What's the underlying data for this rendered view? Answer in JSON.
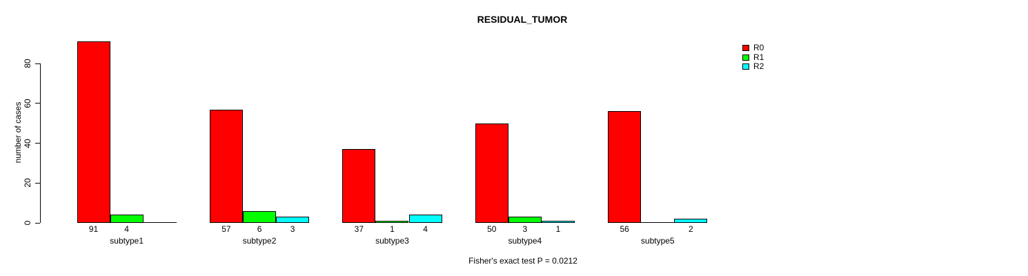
{
  "chart_data": {
    "type": "bar",
    "title": "RESIDUAL_TUMOR",
    "ylabel": "number of cases",
    "xlabel": "",
    "ylim": [
      0,
      91
    ],
    "yticks": [
      0,
      20,
      40,
      60,
      80
    ],
    "grid": false,
    "legend_position": "top-right",
    "bar_border_color": "#000000",
    "categories": [
      "subtype1",
      "subtype2",
      "subtype3",
      "subtype4",
      "subtype5"
    ],
    "series": [
      {
        "name": "R0",
        "color": "#ff0000",
        "values": [
          91,
          57,
          37,
          50,
          56
        ]
      },
      {
        "name": "R1",
        "color": "#00ff00",
        "values": [
          4,
          6,
          1,
          3,
          0
        ]
      },
      {
        "name": "R2",
        "color": "#00ffff",
        "values": [
          0,
          3,
          4,
          1,
          2
        ]
      }
    ],
    "show_value_labels": true,
    "hide_zero_value_labels": true,
    "footnote": "Fisher's exact test P = 0.0212"
  }
}
